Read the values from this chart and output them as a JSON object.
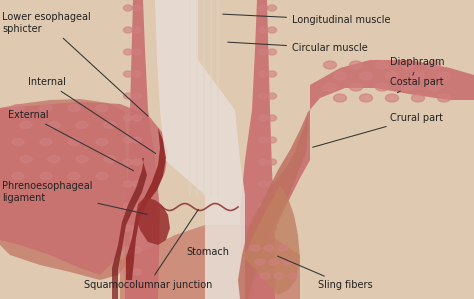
{
  "bg_color": "#dfc9b0",
  "esophagus_color": "#c97070",
  "muscle_texture": "#d08080",
  "muscle_dark": "#a04848",
  "lumen_color": "#e8ddd5",
  "lumen_highlight": "#f5f0ea",
  "dark_lining": "#8b2020",
  "ext_lining": "#7a1a1a",
  "stomach_color": "#c87868",
  "text_color": "#222222",
  "font_size": 7.0,
  "labels": {
    "lower_es": "Lower esophageal\nsphicter",
    "internal": "Internal",
    "external": "External",
    "phrenoesophageal": "Phrenoesophageal\nligament",
    "longitudinal": "Longitudinal muscle",
    "circular": "Circular muscle",
    "diaphragm": "Diaphragm",
    "costal": "Costal part",
    "crural": "Crural part",
    "stomach": "Stomach",
    "squamo": "Squamocolumnar junction",
    "sling": "Sling fibers"
  }
}
